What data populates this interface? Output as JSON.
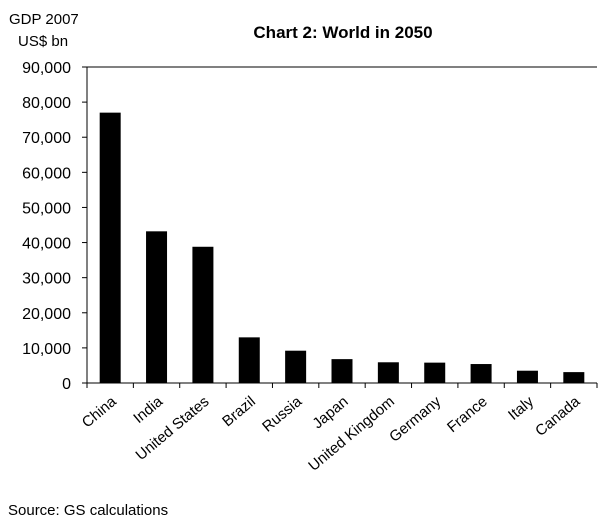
{
  "chart_data": {
    "type": "bar",
    "title": "Chart 2: World in 2050",
    "ylabel_lines": [
      "GDP 2007",
      "US$ bn"
    ],
    "xlabel": "",
    "categories": [
      "China",
      "India",
      "United States",
      "Brazil",
      "Russia",
      "Japan",
      "United Kingdom",
      "Germany",
      "France",
      "Italy",
      "Canada"
    ],
    "values": [
      77000,
      43200,
      38800,
      13000,
      9200,
      6800,
      5900,
      5800,
      5400,
      3500,
      3100
    ],
    "ylim": [
      0,
      90000
    ],
    "yticks": [
      0,
      10000,
      20000,
      30000,
      40000,
      50000,
      60000,
      70000,
      80000,
      90000
    ],
    "ytick_labels": [
      "0",
      "10,000",
      "20,000",
      "30,000",
      "40,000",
      "50,000",
      "60,000",
      "70,000",
      "80,000",
      "90,000"
    ],
    "bar_color": "#000000",
    "grid": false,
    "legend": "none"
  },
  "source": "Source: GS calculations"
}
